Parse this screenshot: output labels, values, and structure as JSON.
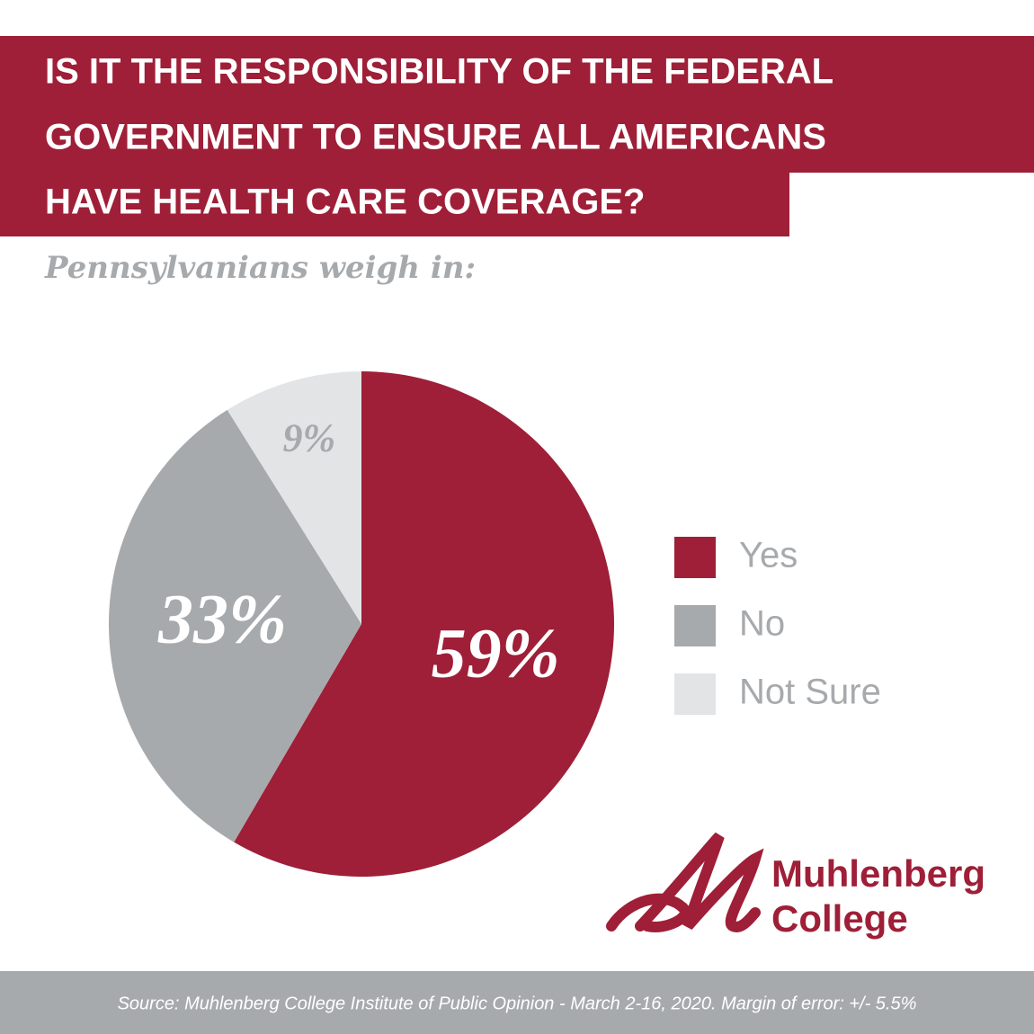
{
  "chart_data": {
    "type": "pie",
    "title": [
      "IS IT THE RESPONSIBILITY OF THE FEDERAL",
      "GOVERNMENT TO ENSURE ALL AMERICANS",
      "HAVE HEALTH CARE COVERAGE?"
    ],
    "subtitle": "Pennsylvanians weigh in:",
    "categories": [
      "Yes",
      "No",
      "Not Sure"
    ],
    "values": [
      59,
      33,
      9
    ],
    "value_labels": [
      "59%",
      "33%",
      "9%"
    ],
    "colors": [
      "#9e1f37",
      "#a7aaad",
      "#e3e4e6"
    ],
    "label_colors": [
      "#ffffff",
      "#ffffff",
      "#a7aaad"
    ],
    "legend": "right",
    "logo": [
      "Muhlenberg",
      "College"
    ],
    "source": "Source: Muhlenberg College Institute of Public Opinion - March 2-16, 2020. Margin of error: +/- 5.5%"
  }
}
